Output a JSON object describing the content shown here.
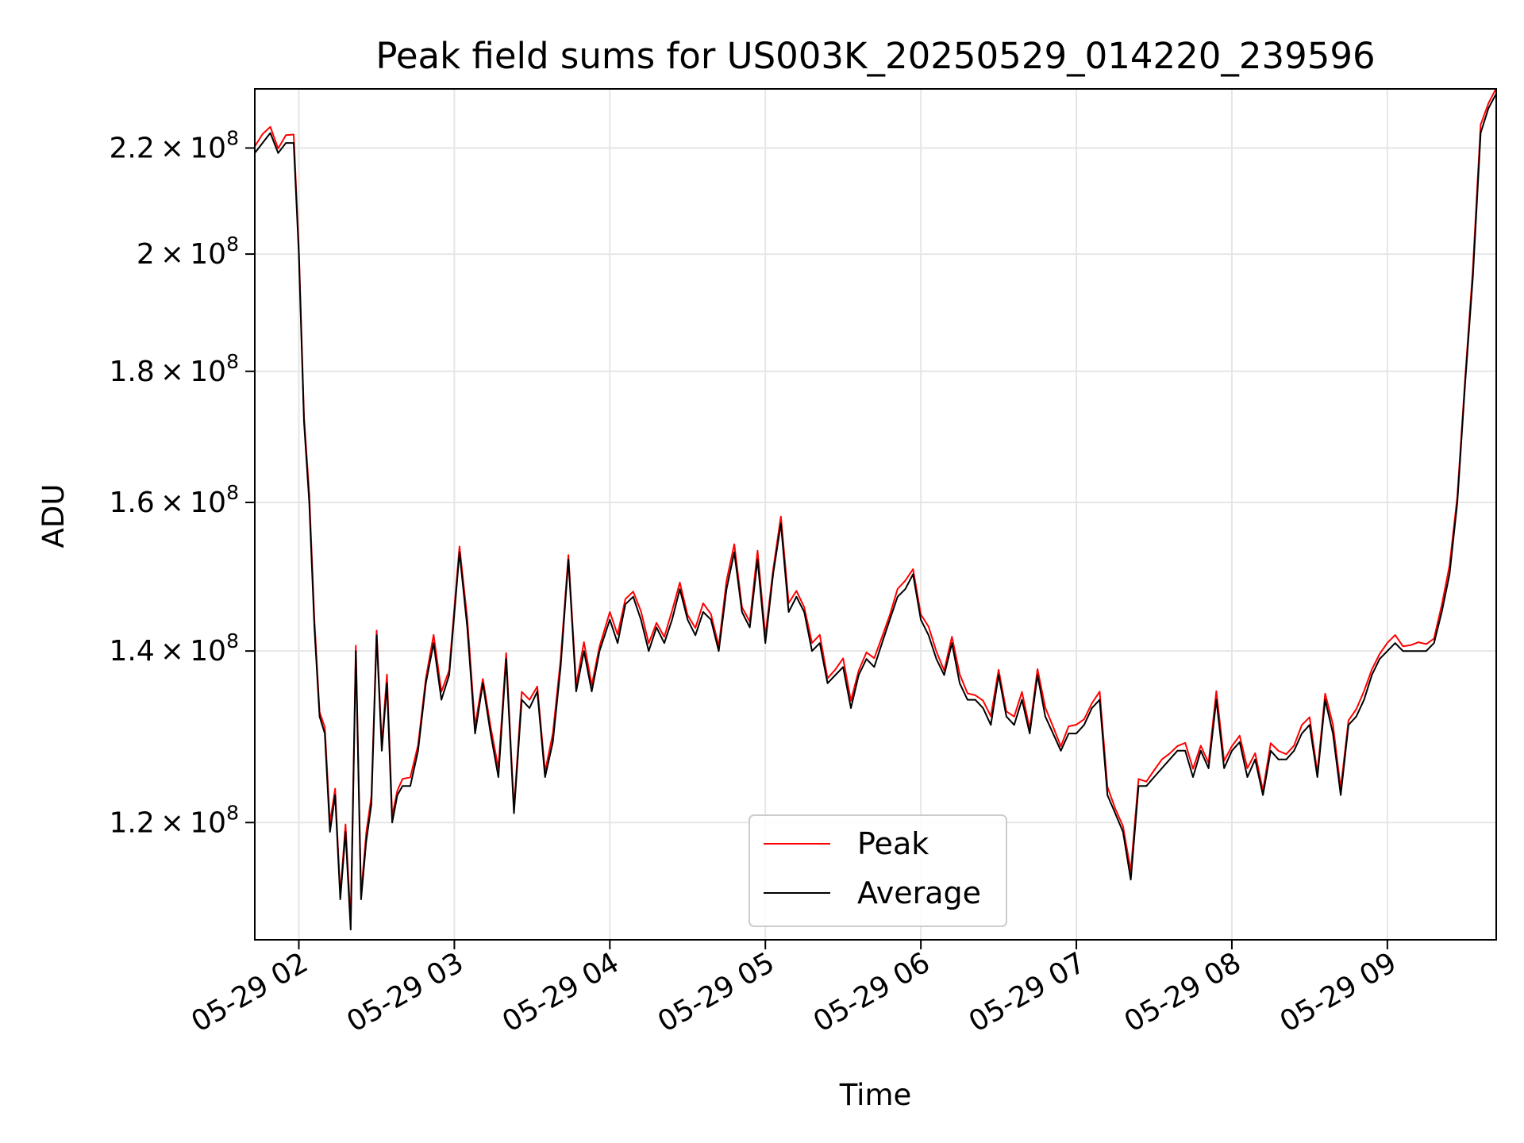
{
  "chart_data": {
    "type": "line",
    "title": "Peak field sums for US003K_20250529_014220_239596",
    "xlabel": "Time",
    "ylabel": "ADU",
    "y_scale": "log",
    "x_range": [
      "2025-05-29 01:43",
      "2025-05-29 09:42"
    ],
    "ylim": [
      108000000,
      232000000
    ],
    "grid": true,
    "legend_position": "lower-center",
    "x_ticks": [
      {
        "value": "2025-05-29 02:00",
        "label": "05-29 02"
      },
      {
        "value": "2025-05-29 03:00",
        "label": "05-29 03"
      },
      {
        "value": "2025-05-29 04:00",
        "label": "05-29 04"
      },
      {
        "value": "2025-05-29 05:00",
        "label": "05-29 05"
      },
      {
        "value": "2025-05-29 06:00",
        "label": "05-29 06"
      },
      {
        "value": "2025-05-29 07:00",
        "label": "05-29 07"
      },
      {
        "value": "2025-05-29 08:00",
        "label": "05-29 08"
      },
      {
        "value": "2025-05-29 09:00",
        "label": "05-29 09"
      }
    ],
    "y_ticks": [
      {
        "value": 120000000,
        "mantissa": "1.2",
        "exp": "8"
      },
      {
        "value": 140000000,
        "mantissa": "1.4",
        "exp": "8"
      },
      {
        "value": 160000000,
        "mantissa": "1.6",
        "exp": "8"
      },
      {
        "value": 180000000,
        "mantissa": "1.8",
        "exp": "8"
      },
      {
        "value": 200000000,
        "mantissa": "2",
        "exp": "8"
      },
      {
        "value": 220000000,
        "mantissa": "2.2",
        "exp": "8"
      }
    ],
    "series": [
      {
        "name": "Peak",
        "color": "#ff0000"
      },
      {
        "name": "Average",
        "color": "#000000"
      }
    ],
    "x": [
      "2025-05-29 01:43",
      "2025-05-29 01:46",
      "2025-05-29 01:49",
      "2025-05-29 01:52",
      "2025-05-29 01:55",
      "2025-05-29 01:58",
      "2025-05-29 02:00",
      "2025-05-29 02:02",
      "2025-05-29 02:04",
      "2025-05-29 02:06",
      "2025-05-29 02:08",
      "2025-05-29 02:10",
      "2025-05-29 02:12",
      "2025-05-29 02:14",
      "2025-05-29 02:16",
      "2025-05-29 02:18",
      "2025-05-29 02:20",
      "2025-05-29 02:22",
      "2025-05-29 02:24",
      "2025-05-29 02:26",
      "2025-05-29 02:28",
      "2025-05-29 02:30",
      "2025-05-29 02:32",
      "2025-05-29 02:34",
      "2025-05-29 02:36",
      "2025-05-29 02:38",
      "2025-05-29 02:40",
      "2025-05-29 02:43",
      "2025-05-29 02:46",
      "2025-05-29 02:49",
      "2025-05-29 02:52",
      "2025-05-29 02:55",
      "2025-05-29 02:58",
      "2025-05-29 03:02",
      "2025-05-29 03:05",
      "2025-05-29 03:08",
      "2025-05-29 03:11",
      "2025-05-29 03:14",
      "2025-05-29 03:17",
      "2025-05-29 03:20",
      "2025-05-29 03:23",
      "2025-05-29 03:26",
      "2025-05-29 03:29",
      "2025-05-29 03:32",
      "2025-05-29 03:35",
      "2025-05-29 03:38",
      "2025-05-29 03:41",
      "2025-05-29 03:44",
      "2025-05-29 03:47",
      "2025-05-29 03:50",
      "2025-05-29 03:53",
      "2025-05-29 03:56",
      "2025-05-29 04:00",
      "2025-05-29 04:03",
      "2025-05-29 04:06",
      "2025-05-29 04:09",
      "2025-05-29 04:12",
      "2025-05-29 04:15",
      "2025-05-29 04:18",
      "2025-05-29 04:21",
      "2025-05-29 04:24",
      "2025-05-29 04:27",
      "2025-05-29 04:30",
      "2025-05-29 04:33",
      "2025-05-29 04:36",
      "2025-05-29 04:39",
      "2025-05-29 04:42",
      "2025-05-29 04:45",
      "2025-05-29 04:48",
      "2025-05-29 04:51",
      "2025-05-29 04:54",
      "2025-05-29 04:57",
      "2025-05-29 05:00",
      "2025-05-29 05:03",
      "2025-05-29 05:06",
      "2025-05-29 05:09",
      "2025-05-29 05:12",
      "2025-05-29 05:15",
      "2025-05-29 05:18",
      "2025-05-29 05:21",
      "2025-05-29 05:24",
      "2025-05-29 05:27",
      "2025-05-29 05:30",
      "2025-05-29 05:33",
      "2025-05-29 05:36",
      "2025-05-29 05:39",
      "2025-05-29 05:42",
      "2025-05-29 05:45",
      "2025-05-29 05:48",
      "2025-05-29 05:51",
      "2025-05-29 05:54",
      "2025-05-29 05:57",
      "2025-05-29 06:00",
      "2025-05-29 06:03",
      "2025-05-29 06:06",
      "2025-05-29 06:09",
      "2025-05-29 06:12",
      "2025-05-29 06:15",
      "2025-05-29 06:18",
      "2025-05-29 06:21",
      "2025-05-29 06:24",
      "2025-05-29 06:27",
      "2025-05-29 06:30",
      "2025-05-29 06:33",
      "2025-05-29 06:36",
      "2025-05-29 06:39",
      "2025-05-29 06:42",
      "2025-05-29 06:45",
      "2025-05-29 06:48",
      "2025-05-29 06:51",
      "2025-05-29 06:54",
      "2025-05-29 06:57",
      "2025-05-29 07:00",
      "2025-05-29 07:03",
      "2025-05-29 07:06",
      "2025-05-29 07:09",
      "2025-05-29 07:12",
      "2025-05-29 07:15",
      "2025-05-29 07:18",
      "2025-05-29 07:21",
      "2025-05-29 07:24",
      "2025-05-29 07:27",
      "2025-05-29 07:30",
      "2025-05-29 07:33",
      "2025-05-29 07:36",
      "2025-05-29 07:39",
      "2025-05-29 07:42",
      "2025-05-29 07:45",
      "2025-05-29 07:48",
      "2025-05-29 07:51",
      "2025-05-29 07:54",
      "2025-05-29 07:57",
      "2025-05-29 08:00",
      "2025-05-29 08:03",
      "2025-05-29 08:06",
      "2025-05-29 08:09",
      "2025-05-29 08:12",
      "2025-05-29 08:15",
      "2025-05-29 08:18",
      "2025-05-29 08:21",
      "2025-05-29 08:24",
      "2025-05-29 08:27",
      "2025-05-29 08:30",
      "2025-05-29 08:33",
      "2025-05-29 08:36",
      "2025-05-29 08:39",
      "2025-05-29 08:42",
      "2025-05-29 08:45",
      "2025-05-29 08:48",
      "2025-05-29 08:51",
      "2025-05-29 08:54",
      "2025-05-29 08:57",
      "2025-05-29 09:00",
      "2025-05-29 09:03",
      "2025-05-29 09:06",
      "2025-05-29 09:09",
      "2025-05-29 09:12",
      "2025-05-29 09:15",
      "2025-05-29 09:18",
      "2025-05-29 09:21",
      "2025-05-29 09:24",
      "2025-05-29 09:27",
      "2025-05-29 09:30",
      "2025-05-29 09:33",
      "2025-05-29 09:36",
      "2025-05-29 09:39",
      "2025-05-29 09:42"
    ],
    "avg_values": [
      219000000,
      221000000,
      223000000,
      219000000,
      221000000,
      221000000,
      200000000,
      172000000,
      160000000,
      143000000,
      132000000,
      130000000,
      119000000,
      123000000,
      112000000,
      119000000,
      109000000,
      140000000,
      112000000,
      118000000,
      122000000,
      142000000,
      128000000,
      136000000,
      120000000,
      123000000,
      124000000,
      124000000,
      128000000,
      136000000,
      141000000,
      134000000,
      137000000,
      153000000,
      143000000,
      130000000,
      136000000,
      130000000,
      125000000,
      139000000,
      121000000,
      134000000,
      133000000,
      135000000,
      125000000,
      129000000,
      138000000,
      152000000,
      135000000,
      140000000,
      135000000,
      140000000,
      144000000,
      141000000,
      146000000,
      147000000,
      144000000,
      140000000,
      143000000,
      141000000,
      144000000,
      148000000,
      144000000,
      142000000,
      145000000,
      144000000,
      140000000,
      148000000,
      153000000,
      145000000,
      143000000,
      152000000,
      141000000,
      150000000,
      157000000,
      145000000,
      147000000,
      145000000,
      140000000,
      141000000,
      136000000,
      137000000,
      138000000,
      133000000,
      137000000,
      139000000,
      138000000,
      141000000,
      144000000,
      147000000,
      148000000,
      150000000,
      144000000,
      142000000,
      139000000,
      137000000,
      141000000,
      136000000,
      134000000,
      134000000,
      133000000,
      131000000,
      137000000,
      132000000,
      131000000,
      134000000,
      130000000,
      137000000,
      132000000,
      130000000,
      128000000,
      130000000,
      130000000,
      131000000,
      133000000,
      134000000,
      123000000,
      121000000,
      119000000,
      114000000,
      124000000,
      124000000,
      125000000,
      126000000,
      127000000,
      128000000,
      128000000,
      125000000,
      128000000,
      126000000,
      134000000,
      126000000,
      128000000,
      129000000,
      125000000,
      127000000,
      123000000,
      128000000,
      127000000,
      127000000,
      128000000,
      130000000,
      131000000,
      125000000,
      134000000,
      130000000,
      123000000,
      131000000,
      132000000,
      134000000,
      137000000,
      139000000,
      140000000,
      141000000,
      140000000,
      140000000,
      140000000,
      140000000,
      141000000,
      145000000,
      150000000,
      160000000,
      178000000,
      196000000,
      223000000,
      228000000,
      231000000
    ]
  }
}
